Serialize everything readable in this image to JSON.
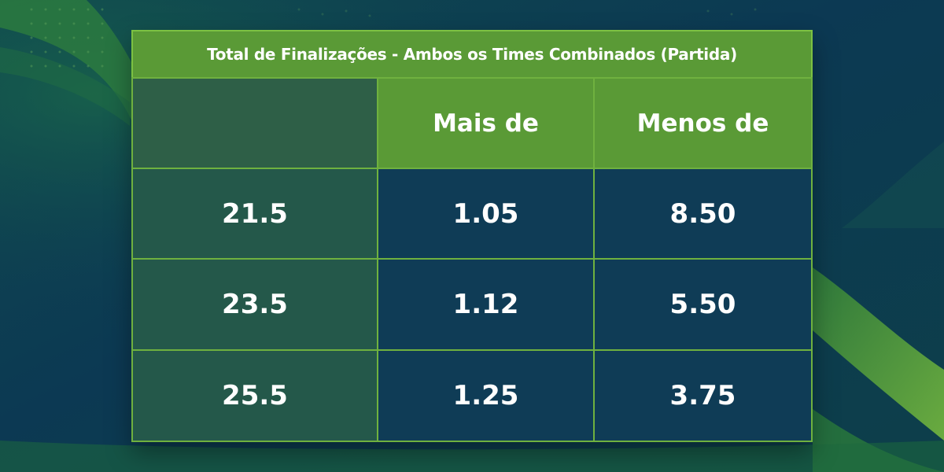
{
  "table": {
    "title": "Total de Finalizações - Ambos os Times Combinados (Partida)",
    "header": {
      "empty": "",
      "over_label": "Mais de",
      "under_label": "Menos de"
    },
    "rows": [
      {
        "line": "21.5",
        "over": "1.05",
        "under": "8.50"
      },
      {
        "line": "23.5",
        "over": "1.12",
        "under": "5.50"
      },
      {
        "line": "25.5",
        "over": "1.25",
        "under": "3.75"
      }
    ]
  },
  "colors": {
    "background_dark": "#0d3a52",
    "accent_green": "#5a9a36",
    "border_green": "#7cc142",
    "cell_blue": "#0f3c56",
    "row_label_green": "#24584a"
  }
}
